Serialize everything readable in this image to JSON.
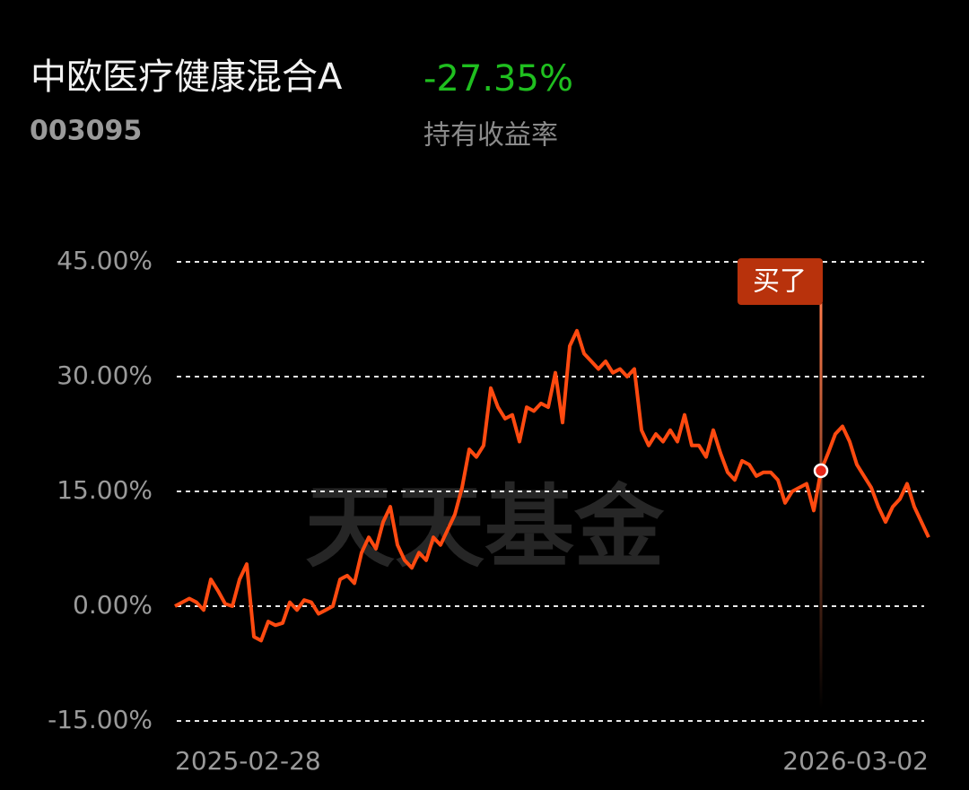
{
  "header": {
    "name": "中欧医疗健康混合A",
    "return": "-27.35%",
    "code": "003095",
    "return_label": "持有收益率"
  },
  "watermark": "天天基金",
  "chart_data": {
    "type": "line",
    "color": "#ff4a10",
    "categories": [
      "2025-02-28",
      null,
      null,
      null,
      null,
      null,
      null,
      null,
      null,
      null,
      null,
      null,
      null,
      null,
      null,
      null,
      null,
      null,
      null,
      null,
      null,
      null,
      null,
      null,
      null,
      null,
      null,
      null,
      null,
      null,
      null,
      null,
      null,
      null,
      null,
      null,
      null,
      null,
      null,
      null,
      null,
      null,
      null,
      null,
      null,
      null,
      null,
      null,
      null,
      null,
      null,
      null,
      null,
      null,
      null,
      null,
      null,
      null,
      null,
      null,
      null,
      null,
      null,
      null,
      null,
      null,
      null,
      null,
      null,
      null,
      null,
      null,
      null,
      null,
      null,
      null,
      null,
      null,
      null,
      null,
      null,
      null,
      null,
      null,
      null,
      null,
      null,
      null,
      null,
      null,
      null,
      null,
      null,
      null,
      null,
      null,
      null,
      null,
      null,
      null,
      null,
      null,
      null,
      null,
      null,
      "2026-03-02"
    ],
    "values": [
      0,
      0.5,
      1,
      0.5,
      -0.5,
      3.5,
      2,
      0.3,
      0,
      3.5,
      5.5,
      -4,
      -4.5,
      -2,
      -2.5,
      -2.2,
      0.5,
      -0.5,
      0.8,
      0.5,
      -1,
      -0.5,
      0,
      3.5,
      4,
      3,
      7,
      9,
      7.5,
      11,
      13,
      8,
      6,
      5,
      7,
      6,
      9,
      8,
      10,
      12,
      15.5,
      20.5,
      19.5,
      21,
      28.5,
      26,
      24.5,
      25,
      21.5,
      26,
      25.5,
      26.5,
      26,
      30.5,
      24,
      34,
      36,
      33,
      32,
      31,
      32,
      30.5,
      31,
      30,
      31,
      23,
      21,
      22.5,
      21.5,
      23,
      21.5,
      25,
      21,
      21,
      19.5,
      23,
      20,
      17.5,
      16.5,
      19,
      18.5,
      17,
      17.5,
      17.5,
      16.5,
      13.5,
      15,
      15.5,
      16,
      12.5,
      17.7,
      20,
      22.5,
      23.5,
      21.5,
      18.5,
      17,
      15.5,
      13,
      11,
      13,
      14,
      16,
      13,
      11,
      9
    ],
    "ylim": [
      -15,
      45
    ],
    "yticks": [
      {
        "value": 45,
        "label": "45.00%"
      },
      {
        "value": 30,
        "label": "30.00%"
      },
      {
        "value": 15,
        "label": "15.00%"
      },
      {
        "value": 0,
        "label": "0.00%"
      },
      {
        "value": -15,
        "label": "-15.00%"
      }
    ],
    "grid": true,
    "annotation": {
      "text": "买了",
      "index": 90,
      "value": 17.7
    }
  }
}
